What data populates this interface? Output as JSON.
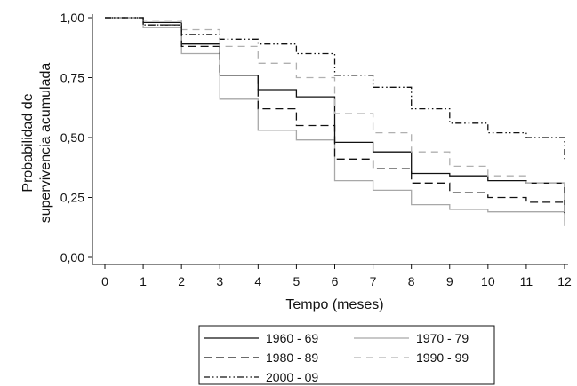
{
  "chart_data": {
    "type": "line",
    "step": true,
    "xlabel": "Tempo (meses)",
    "ylabel": [
      "Probabilidad de",
      "supervivencia acumulada"
    ],
    "xlim": [
      0,
      12
    ],
    "ylim": [
      0,
      1
    ],
    "x_ticks": [
      0,
      1,
      2,
      3,
      4,
      5,
      6,
      7,
      8,
      9,
      10,
      11,
      12
    ],
    "x_tick_labels": [
      "0",
      "1",
      "2",
      "3",
      "4",
      "5",
      "6",
      "7",
      "8",
      "9",
      "10",
      "11",
      "12"
    ],
    "y_ticks": [
      0,
      0.25,
      0.5,
      0.75,
      1
    ],
    "y_tick_labels": [
      "0,00",
      "0,25",
      "0,50",
      "0,75",
      "1,00"
    ],
    "grid": false,
    "legend_position": "bottom",
    "series": [
      {
        "name": "1960 - 69",
        "color": "#111111",
        "dash": "solid",
        "x": [
          0,
          1,
          2,
          3,
          4,
          5,
          6,
          7,
          8,
          9,
          10,
          11,
          12,
          12
        ],
        "y": [
          1.0,
          0.98,
          0.89,
          0.76,
          0.7,
          0.67,
          0.48,
          0.44,
          0.35,
          0.34,
          0.32,
          0.31,
          0.31,
          0.18
        ]
      },
      {
        "name": "1970 - 79",
        "color": "#a8a8a8",
        "dash": "solid",
        "x": [
          0,
          1,
          2,
          3,
          4,
          5,
          6,
          7,
          8,
          9,
          10,
          11,
          12,
          12
        ],
        "y": [
          1.0,
          0.96,
          0.85,
          0.66,
          0.53,
          0.49,
          0.32,
          0.28,
          0.22,
          0.2,
          0.19,
          0.19,
          0.19,
          0.13
        ]
      },
      {
        "name": "1980 - 89",
        "color": "#111111",
        "dash": "long-dash",
        "x": [
          0,
          1,
          2,
          3,
          4,
          5,
          6,
          7,
          8,
          9,
          10,
          11,
          12,
          12
        ],
        "y": [
          1.0,
          0.97,
          0.88,
          0.76,
          0.62,
          0.55,
          0.41,
          0.37,
          0.31,
          0.27,
          0.25,
          0.23,
          0.23,
          0.18
        ]
      },
      {
        "name": "1990 - 99",
        "color": "#b0b0b0",
        "dash": "dash",
        "x": [
          0,
          1,
          2,
          3,
          4,
          5,
          6,
          7,
          8,
          9,
          10,
          11,
          12,
          12
        ],
        "y": [
          1.0,
          0.99,
          0.95,
          0.88,
          0.81,
          0.75,
          0.6,
          0.52,
          0.44,
          0.38,
          0.34,
          0.31,
          0.31,
          0.15
        ]
      },
      {
        "name": "2000 - 09",
        "color": "#111111",
        "dash": "dash-dot-dot",
        "x": [
          0,
          1,
          2,
          3,
          4,
          5,
          6,
          7,
          8,
          9,
          10,
          11,
          12,
          12
        ],
        "y": [
          1.0,
          0.97,
          0.93,
          0.91,
          0.89,
          0.85,
          0.76,
          0.71,
          0.62,
          0.56,
          0.52,
          0.5,
          0.5,
          0.41
        ]
      }
    ]
  }
}
